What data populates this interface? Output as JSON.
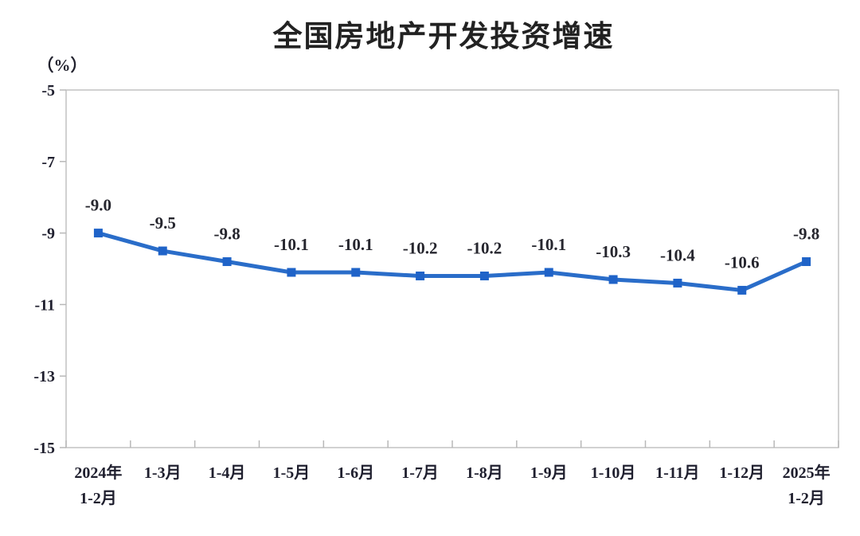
{
  "chart_data": {
    "type": "line",
    "title": "全国房地产开发投资增速",
    "ylabel": "（%）",
    "xlabel": "",
    "ylim": [
      -15,
      -5
    ],
    "yticks": [
      -5,
      -7,
      -9,
      -11,
      -13,
      -15
    ],
    "grid": false,
    "legend": "none",
    "categories": [
      "2024年\n1-2月",
      "1-3月",
      "1-4月",
      "1-5月",
      "1-6月",
      "1-7月",
      "1-8月",
      "1-9月",
      "1-10月",
      "1-11月",
      "1-12月",
      "2025年\n1-2月"
    ],
    "series": [
      {
        "name": "全国房地产开发投资增速",
        "values": [
          -9.0,
          -9.5,
          -9.8,
          -10.1,
          -10.1,
          -10.2,
          -10.2,
          -10.1,
          -10.3,
          -10.4,
          -10.6,
          -9.8
        ],
        "point_labels": [
          "-9.0",
          "-9.5",
          "-9.8",
          "-10.1",
          "-10.1",
          "-10.2",
          "-10.2",
          "-10.1",
          "-10.3",
          "-10.4",
          "-10.6",
          "-9.8"
        ]
      }
    ],
    "colors": {
      "line": "#2a6dc9",
      "marker": "#1f63c8",
      "axis_border": "#c2c2c2",
      "tick": "#b8b8b8",
      "label_text": "#26262e",
      "background": "#ffffff"
    }
  }
}
